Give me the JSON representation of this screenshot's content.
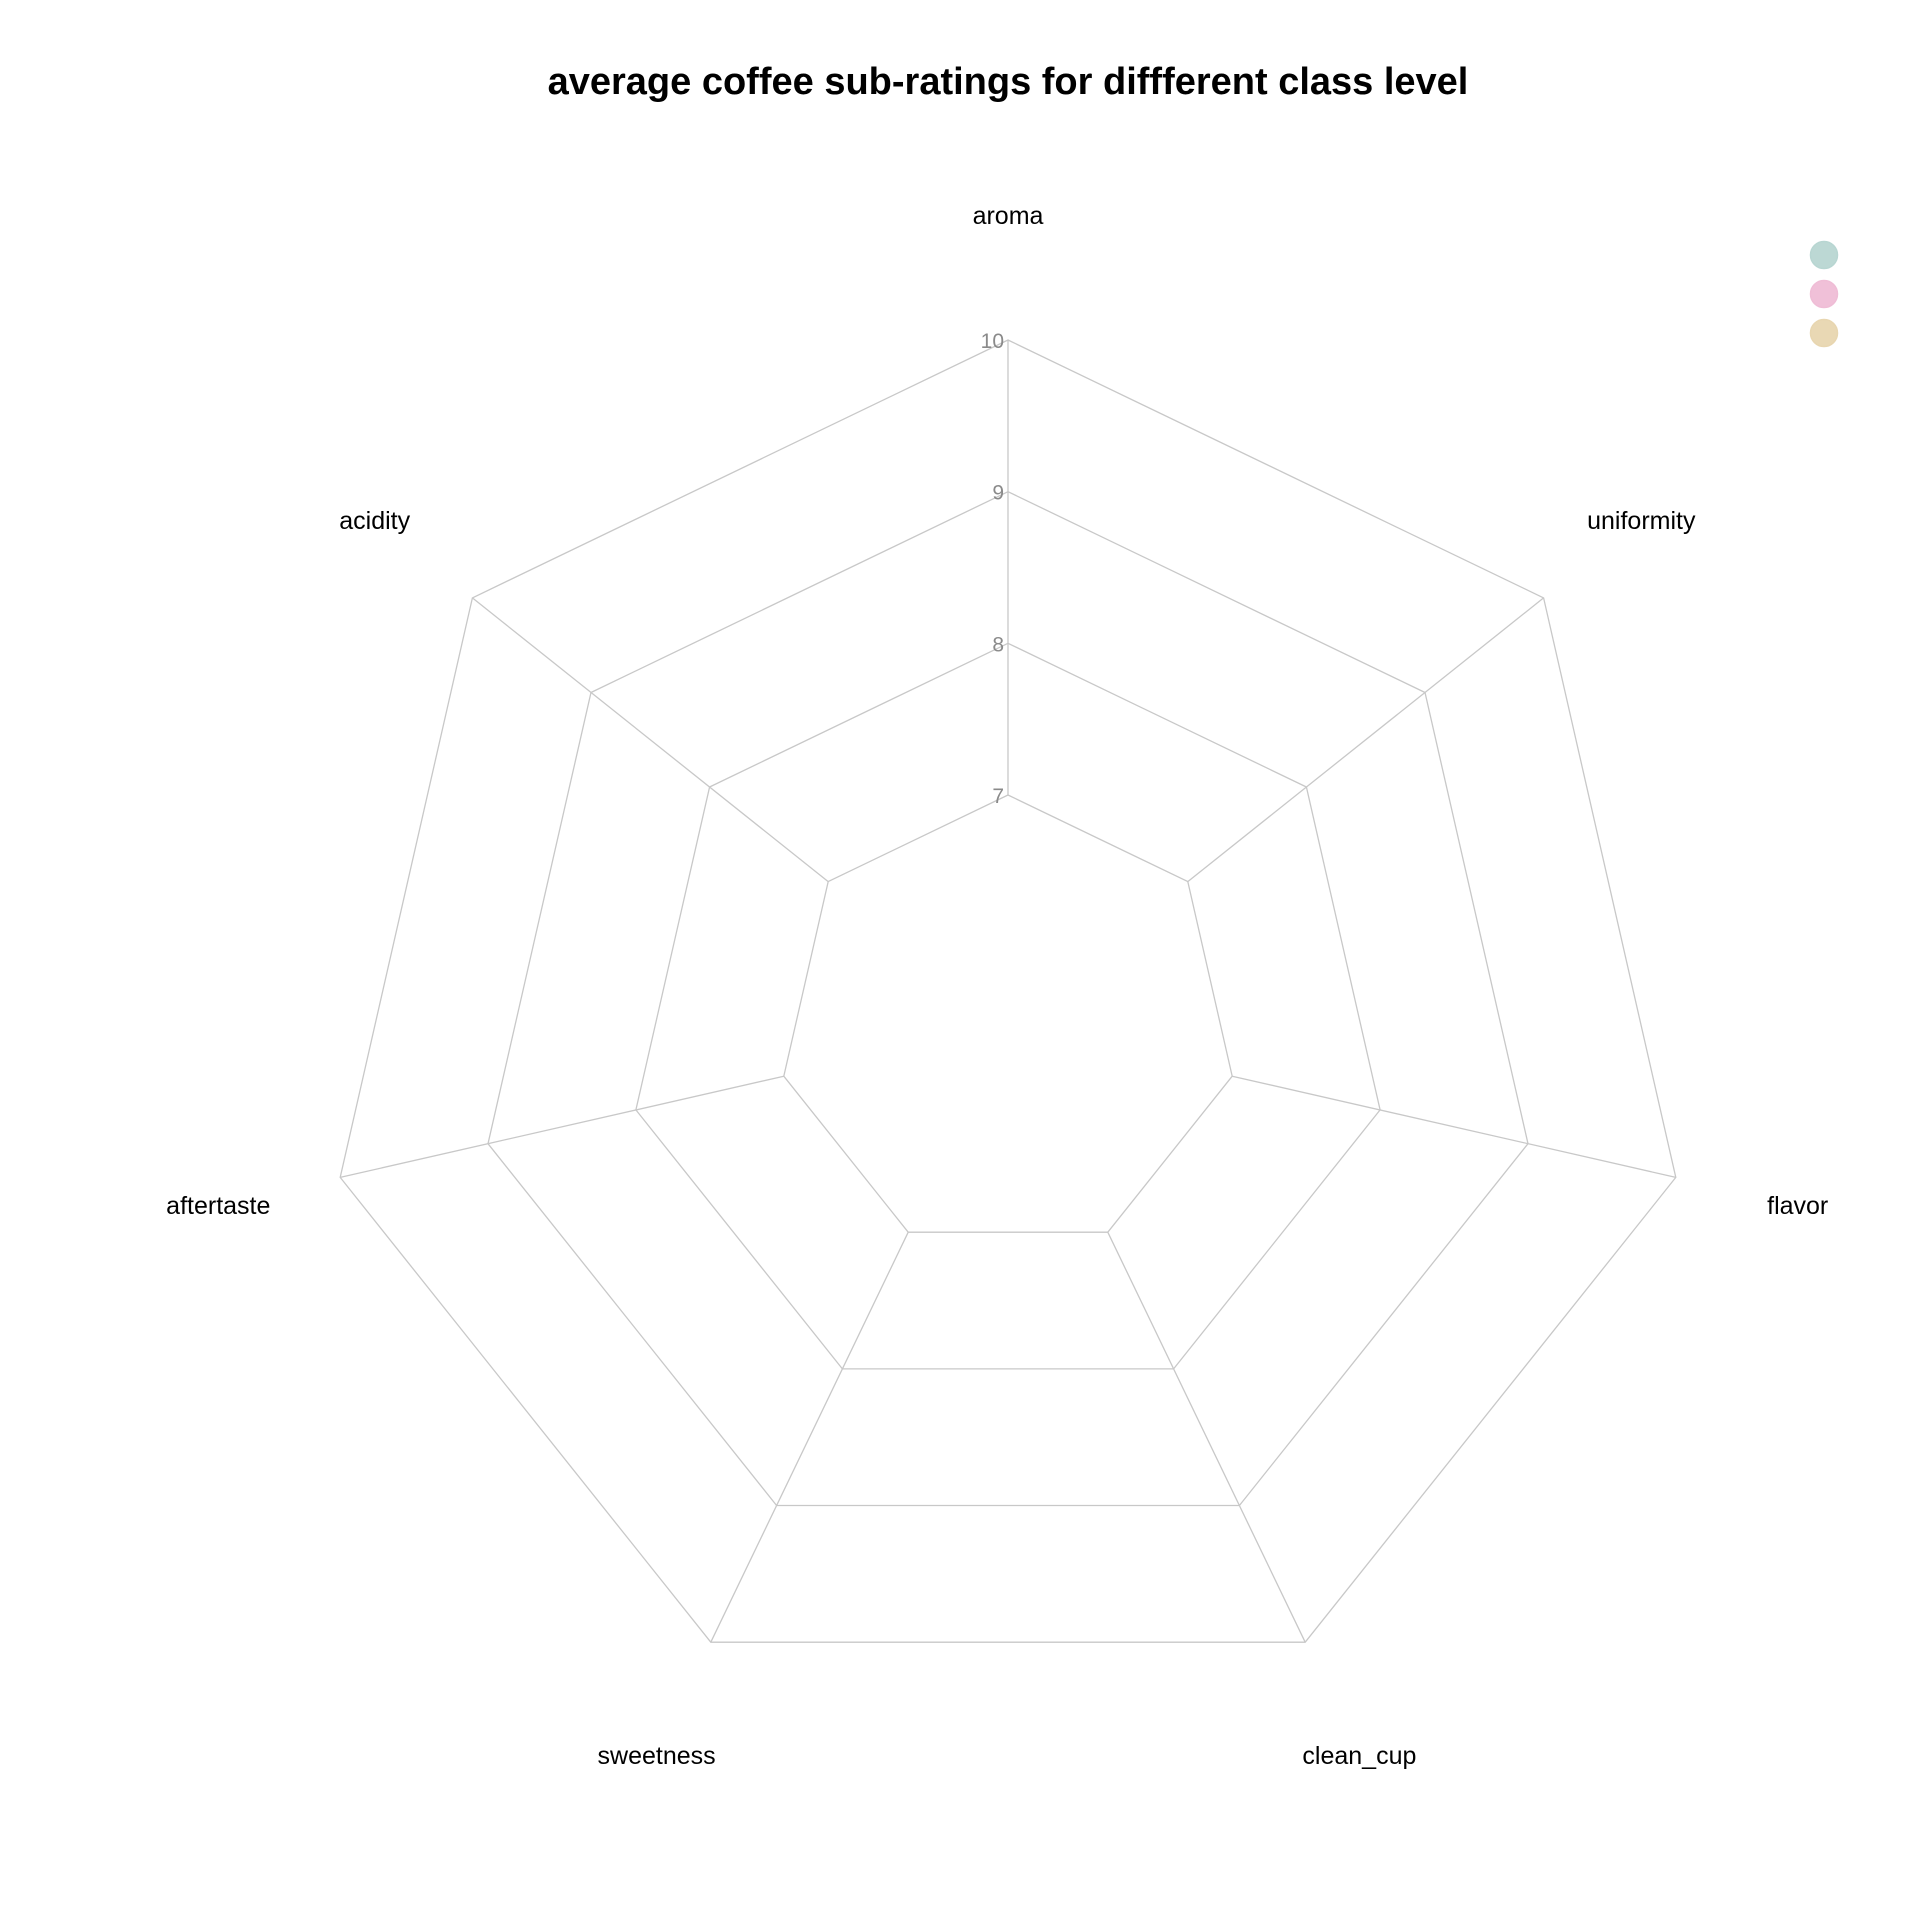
{
  "chart_data": {
    "type": "radar",
    "title": "average coffee sub-ratings for diffferent class level",
    "axes": [
      "aroma",
      "uniformity",
      "flavor",
      "clean_cup",
      "sweetness",
      "aftertaste",
      "acidity"
    ],
    "rlim": [
      7,
      10
    ],
    "rticks": [
      "7",
      "8",
      "9",
      "10"
    ],
    "grid": true,
    "legend_position": "top-right",
    "legend_entries": [
      {
        "name": "",
        "color": "#b8d6d2"
      },
      {
        "name": "",
        "color": "#efbdd6"
      },
      {
        "name": "",
        "color": "#e8d6b0"
      }
    ],
    "series": []
  }
}
